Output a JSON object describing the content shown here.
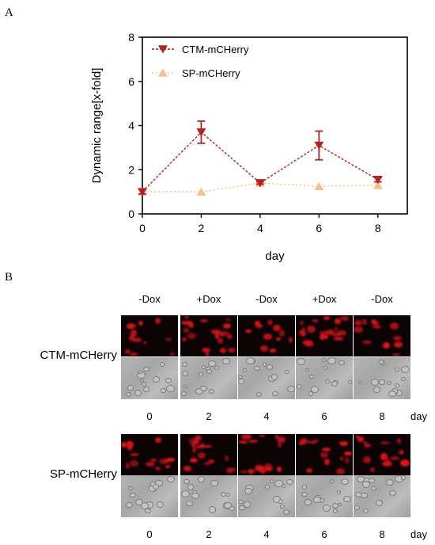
{
  "panels": {
    "a_label": "A",
    "b_label": "B"
  },
  "chart_data": {
    "type": "line",
    "xlabel": "day",
    "ylabel": "Dynamic  range[x-fold]",
    "x": [
      0,
      2,
      4,
      6,
      8
    ],
    "xticks": [
      "0",
      "2",
      "4",
      "6",
      "8"
    ],
    "yticks": [
      "0",
      "2",
      "4",
      "6",
      "8"
    ],
    "xlim": [
      0,
      9
    ],
    "ylim": [
      0,
      8
    ],
    "grid": false,
    "legend_position": "top-left",
    "series": [
      {
        "name": "CTM-mCHerry",
        "color": "#b22222",
        "marker": "triangle-down",
        "line": "dashed",
        "values": [
          1.0,
          3.7,
          1.4,
          3.1,
          1.55
        ],
        "errors": [
          0.1,
          0.5,
          0.05,
          0.65,
          0.1
        ]
      },
      {
        "name": "SP-mCHerry",
        "color": "#f5c08a",
        "marker": "triangle-up",
        "line": "dotted",
        "values": [
          1.0,
          1.0,
          1.4,
          1.25,
          1.3
        ],
        "errors": [
          0,
          0,
          0,
          0,
          0
        ]
      }
    ]
  },
  "panel_b": {
    "conditions": [
      "-Dox",
      "+Dox",
      "-Dox",
      "+Dox",
      "-Dox"
    ],
    "rows": [
      {
        "label": "CTM-mCHerry",
        "intensity": [
          0.35,
          0.9,
          0.3,
          0.85,
          0.45
        ]
      },
      {
        "label": "SP-mCHerry",
        "intensity": [
          0.55,
          0.6,
          0.55,
          0.6,
          0.55
        ]
      }
    ],
    "days": [
      "0",
      "2",
      "4",
      "6",
      "8"
    ],
    "day_unit": "day"
  }
}
